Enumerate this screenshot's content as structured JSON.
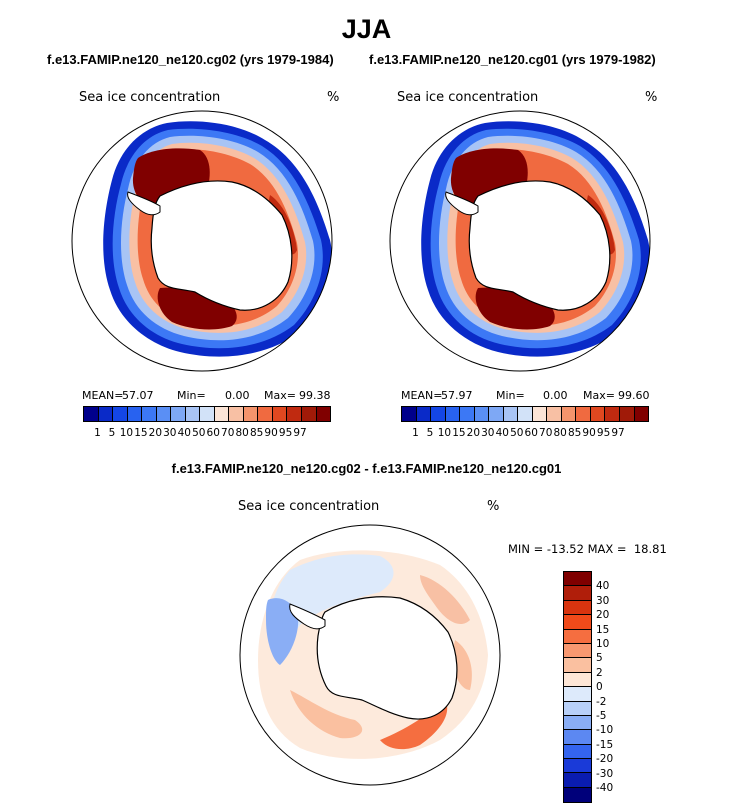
{
  "figure": {
    "title": "JJA",
    "subtitle_left": "f.e13.FAMIP.ne120_ne120.cg02 (yrs 1979-1984)",
    "subtitle_right": "f.e13.FAMIP.ne120_ne120.cg01 (yrs 1979-1982)",
    "diff_title": "f.e13.FAMIP.ne120_ne120.cg02 - f.e13.FAMIP.ne120_ne120.cg01"
  },
  "panels": {
    "left": {
      "title": "Sea ice concentration",
      "units": "%",
      "mean_label": "MEAN=",
      "mean": "57.07",
      "min_label": "Min=",
      "min": "0.00",
      "max_label": "Max=",
      "max": "99.38"
    },
    "right": {
      "title": "Sea ice concentration",
      "units": "%",
      "mean_label": "MEAN=",
      "mean": "57.97",
      "min_label": "Min=",
      "min": "0.00",
      "max_label": "Max=",
      "max": "99.60"
    },
    "diff": {
      "title": "Sea ice concentration",
      "units": "%",
      "minmax_text": "MIN = -13.52 MAX =  18.81"
    }
  },
  "colorbars": {
    "concentration": {
      "labels": [
        "1",
        "5",
        "10",
        "15",
        "20",
        "30",
        "40",
        "50",
        "60",
        "70",
        "80",
        "85",
        "90",
        "95",
        "97"
      ],
      "colors": [
        "#00008b",
        "#0a2ac8",
        "#1446e6",
        "#2862f0",
        "#3c78f5",
        "#5a8ff5",
        "#7ea8f5",
        "#a8c4f5",
        "#d2e2f8",
        "#fbe4d6",
        "#f8c0a4",
        "#f4946c",
        "#f06a40",
        "#e04820",
        "#c02a10",
        "#a01a08",
        "#800000"
      ]
    },
    "difference": {
      "labels": [
        "40",
        "30",
        "20",
        "15",
        "10",
        "5",
        "2",
        "0",
        "-2",
        "-5",
        "-10",
        "-15",
        "-20",
        "-30",
        "-40"
      ],
      "colors": [
        "#7f0000",
        "#b01e0a",
        "#d8340f",
        "#f04a1a",
        "#f56e40",
        "#f89870",
        "#fac0a0",
        "#fde6d6",
        "#ddeafb",
        "#b8d0f8",
        "#8aaef5",
        "#5c88f2",
        "#3464ee",
        "#1a3ad8",
        "#0a1cb0",
        "#00007a"
      ]
    }
  },
  "chart_data": [
    {
      "type": "heatmap",
      "title": "Sea ice concentration",
      "subtitle": "f.e13.FAMIP.ne120_ne120.cg02 (yrs 1979-1984)",
      "units": "%",
      "projection": "south-polar-stereographic",
      "season": "JJA",
      "mean": 57.07,
      "min": 0.0,
      "max": 99.38,
      "contour_levels": [
        1,
        5,
        10,
        15,
        20,
        30,
        40,
        50,
        60,
        70,
        80,
        85,
        90,
        95,
        97
      ]
    },
    {
      "type": "heatmap",
      "title": "Sea ice concentration",
      "subtitle": "f.e13.FAMIP.ne120_ne120.cg01 (yrs 1979-1982)",
      "units": "%",
      "projection": "south-polar-stereographic",
      "season": "JJA",
      "mean": 57.97,
      "min": 0.0,
      "max": 99.6,
      "contour_levels": [
        1,
        5,
        10,
        15,
        20,
        30,
        40,
        50,
        60,
        70,
        80,
        85,
        90,
        95,
        97
      ]
    },
    {
      "type": "heatmap",
      "title": "Sea ice concentration",
      "subtitle": "f.e13.FAMIP.ne120_ne120.cg02 - f.e13.FAMIP.ne120_ne120.cg01",
      "units": "%",
      "projection": "south-polar-stereographic",
      "season": "JJA",
      "min": -13.52,
      "max": 18.81,
      "contour_levels": [
        -40,
        -30,
        -20,
        -15,
        -10,
        -5,
        -2,
        0,
        2,
        5,
        10,
        15,
        20,
        30,
        40
      ]
    }
  ]
}
